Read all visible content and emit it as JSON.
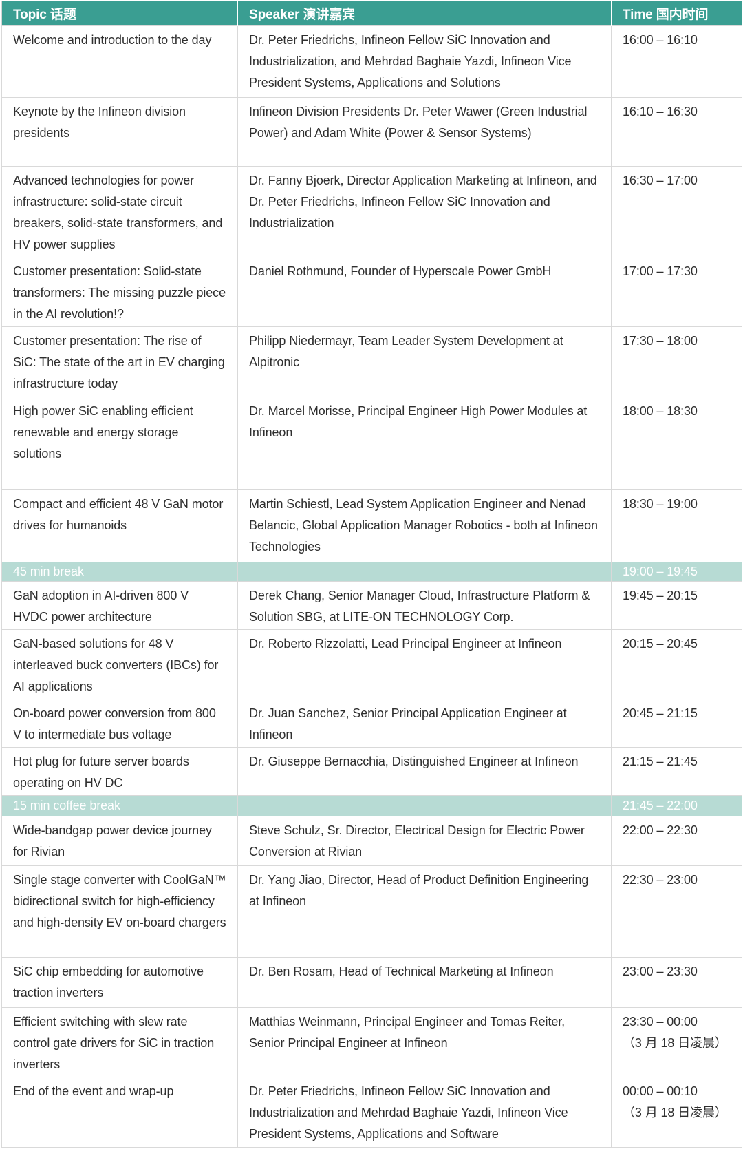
{
  "colors": {
    "header_bg": "#3a9e92",
    "break_bg": "#b7dbd4",
    "header_text": "#ffffff",
    "break_text": "#ffffff",
    "body_text": "#2f2f2f",
    "border": "#d9d9d9",
    "row_bg": "#ffffff"
  },
  "table": {
    "columns": [
      {
        "label": "Topic 话题"
      },
      {
        "label": "Speaker 演讲嘉宾"
      },
      {
        "label": "Time 国内时间"
      }
    ],
    "rows": [
      {
        "type": "session",
        "topic": "Welcome and introduction to the day",
        "speaker": "Dr. Peter Friedrichs, Infineon Fellow SiC Innovation and Industrialization, and Mehrdad Baghaie Yazdi, Infineon Vice President Systems, Applications and Solutions",
        "time": "16:00 – 16:10"
      },
      {
        "type": "session",
        "topic": "Keynote by the Infineon division presidents",
        "speaker": "Infineon Division Presidents Dr. Peter Wawer (Green Industrial Power) and Adam White (Power & Sensor Systems)",
        "time": "16:10 – 16:30"
      },
      {
        "type": "session",
        "topic": "Advanced technologies for power infrastructure: solid-state circuit breakers, solid-state transformers, and HV power supplies",
        "speaker": "Dr. Fanny Bjoerk, Director Application Marketing at Infineon, and Dr. Peter Friedrichs, Infineon Fellow SiC Innovation and Industrialization",
        "time": "16:30 – 17:00"
      },
      {
        "type": "session",
        "topic": "Customer presentation: Solid-state transformers: The missing puzzle piece in the AI revolution!?",
        "speaker": "Daniel Rothmund, Founder of Hyperscale Power GmbH",
        "time": "17:00 – 17:30"
      },
      {
        "type": "session",
        "topic": "Customer presentation: The rise of SiC: The state of the art in EV charging infrastructure today",
        "speaker": "Philipp Niedermayr, Team Leader System Development at Alpitronic",
        "time": "17:30 – 18:00"
      },
      {
        "type": "session",
        "topic": "High power SiC enabling efficient renewable and energy storage solutions",
        "speaker": "Dr. Marcel Morisse, Principal Engineer High Power Modules at Infineon",
        "time": "18:00 – 18:30"
      },
      {
        "type": "session",
        "topic": "Compact and efficient 48 V GaN motor drives for humanoids",
        "speaker": "Martin Schiestl, Lead System Application Engineer and Nenad Belancic, Global Application Manager Robotics - both at Infineon Technologies",
        "time": "18:30 – 19:00"
      },
      {
        "type": "break",
        "topic": "45 min break",
        "speaker": "",
        "time": "19:00 – 19:45"
      },
      {
        "type": "session",
        "topic": "GaN adoption in AI-driven 800 V HVDC power architecture",
        "speaker": "Derek Chang, Senior Manager Cloud, Infrastructure Platform & Solution SBG, at LITE-ON TECHNOLOGY Corp.",
        "time": "19:45 – 20:15"
      },
      {
        "type": "session",
        "topic": "GaN-based solutions for 48 V interleaved buck converters (IBCs) for AI applications",
        "speaker": "Dr. Roberto Rizzolatti, Lead Principal Engineer at Infineon",
        "time": "20:15 – 20:45"
      },
      {
        "type": "session",
        "topic": "On-board power conversion from 800 V to intermediate bus voltage",
        "speaker": "Dr. Juan Sanchez, Senior Principal Application Engineer at Infineon",
        "time": "20:45 – 21:15"
      },
      {
        "type": "session",
        "topic": "Hot plug for future server boards operating on HV DC",
        "speaker": "Dr. Giuseppe Bernacchia, Distinguished Engineer at Infineon",
        "time": "21:15 – 21:45"
      },
      {
        "type": "break",
        "topic": "15 min coffee break",
        "speaker": "",
        "time": "21:45 – 22:00"
      },
      {
        "type": "session",
        "topic": "Wide-bandgap power device journey for Rivian",
        "speaker": "Steve Schulz, Sr. Director, Electrical Design for Electric Power Conversion at Rivian",
        "time": "22:00 – 22:30"
      },
      {
        "type": "session",
        "topic": "Single stage converter with CoolGaN™ bidirectional switch for high-efficiency and high-density EV on-board chargers",
        "speaker": "Dr. Yang Jiao, Director, Head of Product Definition Engineering at Infineon",
        "time": "22:30 – 23:00"
      },
      {
        "type": "session",
        "topic": "SiC chip embedding for automotive traction inverters",
        "speaker": "Dr. Ben Rosam, Head of Technical Marketing at Infineon",
        "time": "23:00 – 23:30"
      },
      {
        "type": "session",
        "topic": "Efficient switching with slew rate control gate drivers for SiC in traction inverters",
        "speaker": "Matthias Weinmann, Principal Engineer and Tomas Reiter, Senior Principal Engineer at Infineon",
        "time": "23:30 – 00:00\n（3 月 18 日凌晨）"
      },
      {
        "type": "session",
        "topic": "End of the event and wrap-up",
        "speaker": "Dr. Peter Friedrichs, Infineon Fellow SiC Innovation and Industrialization and Mehrdad Baghaie Yazdi, Infineon Vice President Systems, Applications and Software",
        "time": "00:00 – 00:10\n（3 月 18 日凌晨）"
      }
    ]
  }
}
